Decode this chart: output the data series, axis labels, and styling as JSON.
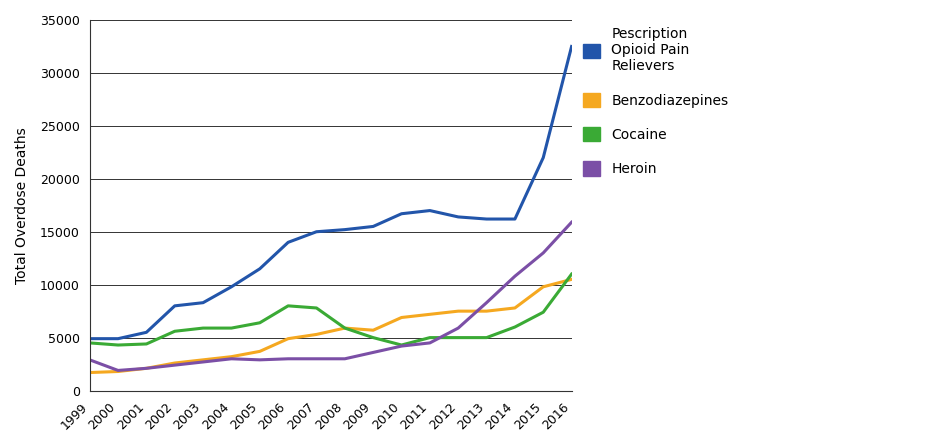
{
  "ylabel": "Total Overdose Deaths",
  "years": [
    1999,
    2000,
    2001,
    2002,
    2003,
    2004,
    2005,
    2006,
    2007,
    2008,
    2009,
    2010,
    2011,
    2012,
    2013,
    2014,
    2015,
    2016
  ],
  "prescription_opioids": [
    4900,
    4900,
    5500,
    8000,
    8300,
    9800,
    11500,
    14000,
    15000,
    15200,
    15500,
    16700,
    17000,
    16400,
    16200,
    16200,
    22000,
    32500
  ],
  "benzodiazepines": [
    1700,
    1800,
    2100,
    2600,
    2900,
    3200,
    3700,
    4900,
    5300,
    5900,
    5700,
    6900,
    7200,
    7500,
    7500,
    7800,
    9800,
    10500
  ],
  "cocaine": [
    4500,
    4300,
    4400,
    5600,
    5900,
    5900,
    6400,
    8000,
    7800,
    5900,
    5000,
    4300,
    5000,
    5000,
    5000,
    6000,
    7400,
    11000
  ],
  "heroin": [
    2900,
    1900,
    2100,
    2400,
    2700,
    3000,
    2900,
    3000,
    3000,
    3000,
    3600,
    4200,
    4500,
    5900,
    8300,
    10800,
    13000,
    15900
  ],
  "colors": {
    "prescription_opioids": "#2255aa",
    "benzodiazepines": "#f5a820",
    "cocaine": "#3aaa35",
    "heroin": "#7b4fa6"
  },
  "legend_labels": {
    "prescription_opioids": "Pescription\nOpioid Pain\nRelievers",
    "benzodiazepines": "Benzodiazepines",
    "cocaine": "Cocaine",
    "heroin": "Heroin"
  },
  "ylim": [
    0,
    35000
  ],
  "yticks": [
    0,
    5000,
    10000,
    15000,
    20000,
    25000,
    30000,
    35000
  ],
  "background_color": "#ffffff",
  "linewidth": 2.2
}
